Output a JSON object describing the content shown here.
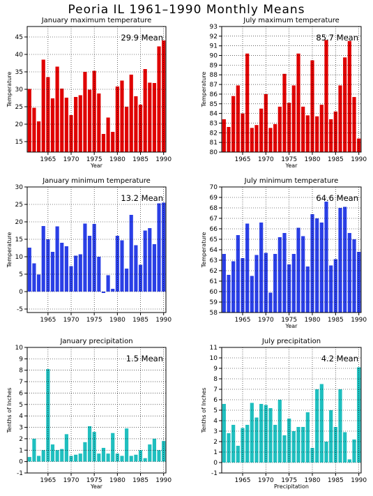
{
  "page": {
    "title": "Peoria IL   1961–1990 Monthly Means"
  },
  "colors": {
    "red": "#e00000",
    "blue": "#2a3fe6",
    "teal": "#1fbfbf",
    "grid": "#000000"
  },
  "chart_data": [
    {
      "type": "bar",
      "title": "January maximum temperature",
      "xlabel": "Year",
      "ylabel": "Temperature",
      "mean_label": "29.9  Mean",
      "color": "#e00000",
      "ylim": [
        12,
        48
      ],
      "yticks": [
        15,
        20,
        25,
        30,
        35,
        40,
        45
      ],
      "xticks": [
        1965,
        1970,
        1975,
        1980,
        1985,
        1990
      ],
      "categories": [
        1961,
        1962,
        1963,
        1964,
        1965,
        1966,
        1967,
        1968,
        1969,
        1970,
        1971,
        1972,
        1973,
        1974,
        1975,
        1976,
        1977,
        1978,
        1979,
        1980,
        1981,
        1982,
        1983,
        1984,
        1985,
        1986,
        1987,
        1988,
        1989,
        1990
      ],
      "values": [
        30.1,
        24.7,
        20.8,
        38.5,
        33.5,
        27.4,
        36.5,
        30.2,
        27.6,
        22.6,
        27.8,
        28.3,
        35.0,
        29.9,
        35.3,
        28.8,
        17.2,
        21.9,
        17.8,
        30.8,
        32.5,
        25.0,
        34.2,
        28.0,
        25.6,
        35.8,
        31.9,
        31.8,
        42.3,
        44.0
      ],
      "grid": true
    },
    {
      "type": "bar",
      "title": "July maximum temperature",
      "xlabel": "Year",
      "ylabel": "Temperature",
      "mean_label": "85.7  Mean",
      "color": "#e00000",
      "ylim": [
        80,
        93
      ],
      "yticks": [
        80,
        81,
        82,
        83,
        84,
        85,
        86,
        87,
        88,
        89,
        90,
        91,
        92,
        93
      ],
      "xticks": [
        1965,
        1970,
        1975,
        1980,
        1985,
        1990
      ],
      "categories": [
        1961,
        1962,
        1963,
        1964,
        1965,
        1966,
        1967,
        1968,
        1969,
        1970,
        1971,
        1972,
        1973,
        1974,
        1975,
        1976,
        1977,
        1978,
        1979,
        1980,
        1981,
        1982,
        1983,
        1984,
        1985,
        1986,
        1987,
        1988,
        1989,
        1990
      ],
      "values": [
        83.4,
        82.6,
        85.8,
        86.9,
        84.0,
        90.2,
        82.5,
        82.8,
        84.5,
        86.0,
        82.5,
        82.9,
        84.7,
        88.1,
        85.1,
        86.9,
        90.2,
        84.7,
        83.8,
        89.5,
        83.7,
        84.9,
        91.6,
        83.4,
        84.2,
        86.9,
        89.8,
        91.5,
        85.7,
        81.4
      ],
      "grid": true
    },
    {
      "type": "bar",
      "title": "January minimum temperature",
      "xlabel": "",
      "ylabel": "Temperature",
      "mean_label": "13.2  Mean",
      "color": "#2a3fe6",
      "ylim": [
        -6,
        30
      ],
      "yticks": [
        -5,
        0,
        5,
        10,
        15,
        20,
        25,
        30
      ],
      "xticks": [
        1965,
        1970,
        1975,
        1980,
        1985,
        1990
      ],
      "categories": [
        1961,
        1962,
        1963,
        1964,
        1965,
        1966,
        1967,
        1968,
        1969,
        1970,
        1971,
        1972,
        1973,
        1974,
        1975,
        1976,
        1977,
        1978,
        1979,
        1980,
        1981,
        1982,
        1983,
        1984,
        1985,
        1986,
        1987,
        1988,
        1989,
        1990
      ],
      "values": [
        12.6,
        8.1,
        4.9,
        18.8,
        15.0,
        11.4,
        18.7,
        14.0,
        13.0,
        7.3,
        10.3,
        10.7,
        19.5,
        16.0,
        19.4,
        10.0,
        -0.4,
        4.7,
        0.8,
        16.0,
        14.7,
        6.6,
        22.0,
        13.3,
        7.7,
        17.5,
        18.2,
        13.6,
        25.3,
        25.5
      ],
      "grid": true
    },
    {
      "type": "bar",
      "title": "July minimum temperature",
      "xlabel": "Year",
      "ylabel": "Temperature",
      "mean_label": "64.6  Mean",
      "color": "#2a3fe6",
      "ylim": [
        58,
        70
      ],
      "yticks": [
        58,
        59,
        60,
        61,
        62,
        63,
        64,
        65,
        66,
        67,
        68,
        69,
        70
      ],
      "xticks": [
        1965,
        1970,
        1975,
        1980,
        1985,
        1990
      ],
      "categories": [
        1961,
        1962,
        1963,
        1964,
        1965,
        1966,
        1967,
        1968,
        1969,
        1970,
        1971,
        1972,
        1973,
        1974,
        1975,
        1976,
        1977,
        1978,
        1979,
        1980,
        1981,
        1982,
        1983,
        1984,
        1985,
        1986,
        1987,
        1988,
        1989,
        1990
      ],
      "values": [
        63.6,
        61.6,
        62.9,
        65.4,
        63.2,
        66.5,
        61.5,
        63.5,
        66.6,
        63.7,
        59.9,
        63.6,
        65.2,
        65.6,
        62.6,
        63.6,
        66.1,
        65.3,
        62.4,
        67.4,
        67.0,
        66.6,
        68.6,
        62.5,
        63.1,
        68.0,
        68.1,
        65.6,
        65.0,
        63.8
      ],
      "grid": true
    },
    {
      "type": "bar",
      "title": "January precipitation",
      "xlabel": "Year",
      "ylabel": "Tenths of Inches",
      "mean_label": "1.5  Mean",
      "color": "#1fbfbf",
      "ylim": [
        -1,
        10
      ],
      "yticks": [
        -1,
        0,
        1,
        2,
        3,
        4,
        5,
        6,
        7,
        8,
        9,
        10
      ],
      "xticks": [
        1965,
        1970,
        1975,
        1980,
        1985,
        1990
      ],
      "categories": [
        1961,
        1962,
        1963,
        1964,
        1965,
        1966,
        1967,
        1968,
        1969,
        1970,
        1971,
        1972,
        1973,
        1974,
        1975,
        1976,
        1977,
        1978,
        1979,
        1980,
        1981,
        1982,
        1983,
        1984,
        1985,
        1986,
        1987,
        1988,
        1989,
        1990
      ],
      "values": [
        0.4,
        2.0,
        0.5,
        1.0,
        8.1,
        1.5,
        1.0,
        1.1,
        2.4,
        0.5,
        0.6,
        0.7,
        1.7,
        3.1,
        2.6,
        0.7,
        1.2,
        0.7,
        2.5,
        0.7,
        0.5,
        2.9,
        0.5,
        0.6,
        1.0,
        0.3,
        1.5,
        2.0,
        1.0,
        1.8
      ],
      "grid": true
    },
    {
      "type": "bar",
      "title": "July precipitation",
      "xlabel": "Precipitation",
      "ylabel": "Tenths of Inches",
      "mean_label": "4.2  Mean",
      "color": "#1fbfbf",
      "ylim": [
        -1,
        11
      ],
      "yticks": [
        -1,
        0,
        1,
        2,
        3,
        4,
        5,
        6,
        7,
        8,
        9,
        10,
        11
      ],
      "xticks": [
        1965,
        1970,
        1975,
        1980,
        1985,
        1990
      ],
      "categories": [
        1961,
        1962,
        1963,
        1964,
        1965,
        1966,
        1967,
        1968,
        1969,
        1970,
        1971,
        1972,
        1973,
        1974,
        1975,
        1976,
        1977,
        1978,
        1979,
        1980,
        1981,
        1982,
        1983,
        1984,
        1985,
        1986,
        1987,
        1988,
        1989,
        1990
      ],
      "values": [
        5.6,
        2.8,
        3.6,
        1.6,
        3.3,
        3.6,
        5.7,
        4.3,
        5.6,
        5.5,
        5.2,
        3.6,
        6.0,
        2.6,
        4.2,
        3.0,
        3.4,
        3.4,
        4.8,
        1.4,
        7.0,
        7.5,
        2.0,
        5.0,
        3.4,
        7.0,
        2.9,
        0.3,
        2.2,
        9.1
      ],
      "grid": true
    }
  ]
}
